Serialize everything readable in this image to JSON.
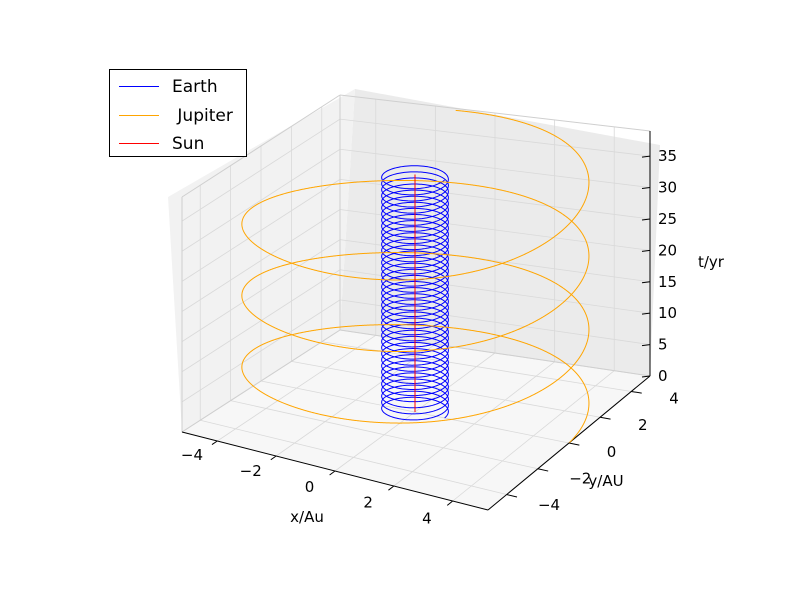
{
  "chart_data": {
    "type": "line",
    "projection": "3d",
    "title": "",
    "xlabel": "x/Au",
    "ylabel": "y/AU",
    "zlabel": "t/yr",
    "xlim": [
      -5.2,
      5.2
    ],
    "ylim": [
      -5.2,
      5.2
    ],
    "zlim": [
      0,
      39
    ],
    "x_ticks": [
      -4,
      -2,
      0,
      2,
      4
    ],
    "x_tick_labels": [
      "−4",
      "−2",
      "0",
      "2",
      "4"
    ],
    "y_ticks": [
      -4,
      -2,
      0,
      2,
      4
    ],
    "y_tick_labels": [
      "−4",
      "−2",
      "0",
      "2",
      "4"
    ],
    "z_ticks": [
      0,
      5,
      10,
      15,
      20,
      25,
      30,
      35
    ],
    "z_tick_labels": [
      "0",
      "5",
      "10",
      "15",
      "20",
      "25",
      "30",
      "35"
    ],
    "grid": true,
    "legend_position": "top-left",
    "series": [
      {
        "name": "Earth",
        "color": "#0000ff",
        "orbit_radius_au": 1.0,
        "period_yr": 1.0,
        "t_range_yr": [
          0,
          39
        ]
      },
      {
        "name": "Jupiter",
        "color": "#ffa500",
        "orbit_radius_au": 5.2,
        "period_yr": 11.86,
        "t_range_yr": [
          0,
          39
        ]
      },
      {
        "name": "Sun",
        "color": "#ff0000",
        "orbit_radius_au": 0.0,
        "period_yr": 1.0,
        "t_range_yr": [
          0,
          39
        ]
      }
    ]
  },
  "legend": {
    "items": [
      {
        "label": "Earth",
        "color": "#0000ff"
      },
      {
        "label": " Jupiter",
        "color": "#ffa500"
      },
      {
        "label": "Sun",
        "color": "#ff0000"
      }
    ]
  }
}
